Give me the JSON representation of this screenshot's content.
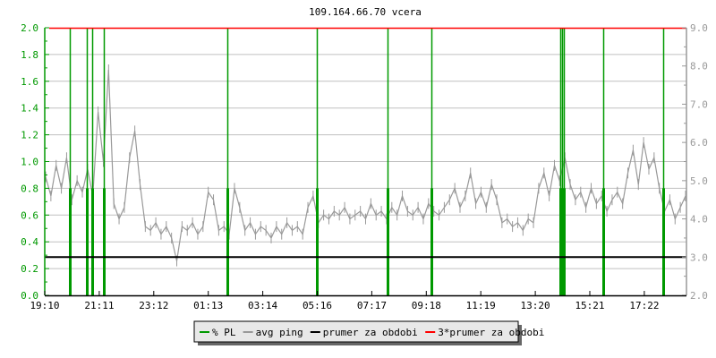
{
  "chart_data": {
    "type": "line",
    "title": "109.164.66.70 vcera",
    "xlabel": "",
    "ylabel": "",
    "x_ticks": [
      "19:10",
      "21:11",
      "23:12",
      "01:13",
      "03:14",
      "05:16",
      "07:17",
      "09:18",
      "11:19",
      "13:20",
      "15:21",
      "17:22"
    ],
    "x_range": [
      "19:10",
      "18:55"
    ],
    "y_left": {
      "range": [
        0,
        2.0
      ],
      "ticks": [
        "0.0",
        "0.2",
        "0.4",
        "0.6",
        "0.8",
        "1.0",
        "1.2",
        "1.4",
        "1.6",
        "1.8",
        "2.0"
      ],
      "color": "#009900"
    },
    "y_right": {
      "range": [
        2.0,
        9.0
      ],
      "ticks": [
        "2.0",
        "3.0",
        "4.0",
        "5.0",
        "6.0",
        "7.0",
        "8.0",
        "9.0"
      ],
      "color": "#999999"
    },
    "grid": true,
    "legend_placement": "bottom",
    "legend": [
      {
        "label": "% PL",
        "color": "#009900"
      },
      {
        "label": "avg ping",
        "color": "#999999"
      },
      {
        "label": "prumer za obdobi",
        "color": "#000000"
      },
      {
        "label": "3*prumer za obdobi",
        "color": "#ff0000"
      }
    ],
    "series": [
      {
        "name": "% PL",
        "axis": "left",
        "note_clipped_at": 2.0,
        "spikes": [
          {
            "time": "20:06",
            "value": 2.0
          },
          {
            "time": "20:43",
            "value": 2.0
          },
          {
            "time": "20:55",
            "value": 2.0
          },
          {
            "time": "21:21",
            "value": 2.0
          },
          {
            "time": "01:55",
            "value": 2.0
          },
          {
            "time": "05:14",
            "value": 2.0
          },
          {
            "time": "07:51",
            "value": 2.0
          },
          {
            "time": "09:28",
            "value": 2.0
          },
          {
            "time": "14:14",
            "value": 2.0
          },
          {
            "time": "14:18",
            "value": 2.0
          },
          {
            "time": "14:22",
            "value": 2.0
          },
          {
            "time": "15:50",
            "value": 2.0
          },
          {
            "time": "18:03",
            "value": 2.0
          }
        ]
      },
      {
        "name": "avg ping",
        "axis": "right",
        "values": [
          5.1,
          4.6,
          5.4,
          4.8,
          5.6,
          4.5,
          5.0,
          4.7,
          5.3,
          4.6,
          6.8,
          5.5,
          7.9,
          4.4,
          4.0,
          4.3,
          5.6,
          6.3,
          4.9,
          3.8,
          3.7,
          3.9,
          3.6,
          3.8,
          3.5,
          2.9,
          3.8,
          3.7,
          3.9,
          3.6,
          3.8,
          4.7,
          4.5,
          3.7,
          3.8,
          3.6,
          4.8,
          4.3,
          3.7,
          3.9,
          3.6,
          3.8,
          3.7,
          3.5,
          3.8,
          3.6,
          3.9,
          3.7,
          3.8,
          3.6,
          4.3,
          4.6,
          3.9,
          4.1,
          4.0,
          4.2,
          4.1,
          4.3,
          4.0,
          4.1,
          4.2,
          4.0,
          4.4,
          4.1,
          4.2,
          4.0,
          4.3,
          4.1,
          4.6,
          4.2,
          4.1,
          4.3,
          4.0,
          4.4,
          4.2,
          4.1,
          4.3,
          4.5,
          4.8,
          4.3,
          4.6,
          5.2,
          4.4,
          4.7,
          4.3,
          4.9,
          4.5,
          3.9,
          4.0,
          3.8,
          3.9,
          3.7,
          4.0,
          3.9,
          4.8,
          5.2,
          4.6,
          5.4,
          5.0,
          5.6,
          4.9,
          4.5,
          4.7,
          4.3,
          4.8,
          4.4,
          4.6,
          4.2,
          4.5,
          4.7,
          4.4,
          5.2,
          5.8,
          4.9,
          6.0,
          5.3,
          5.6,
          4.8,
          4.2,
          4.5,
          4.0,
          4.3,
          4.6
        ]
      },
      {
        "name": "prumer za obdobi",
        "axis": "right",
        "value": 3.0
      },
      {
        "name": "3*prumer za obdobi",
        "axis": "right",
        "value": 9.0
      }
    ]
  }
}
